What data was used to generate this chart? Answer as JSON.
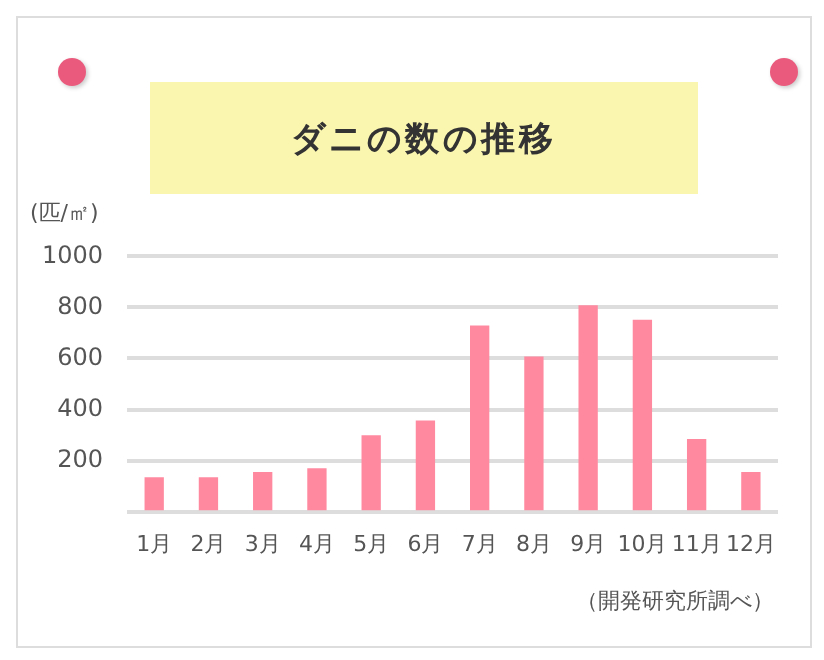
{
  "chart_data": {
    "type": "bar",
    "title": "ダニの数の推移",
    "ylabel": "(匹/㎡)",
    "categories": [
      "1月",
      "2月",
      "3月",
      "4月",
      "5月",
      "6月",
      "7月",
      "8月",
      "9月",
      "10月",
      "11月",
      "12月"
    ],
    "values": [
      132,
      132,
      153,
      167,
      297,
      354,
      727,
      605,
      806,
      749,
      282,
      153
    ],
    "color": "#ff8aa0",
    "ylim": [
      0,
      1000
    ],
    "yticks": [
      {
        "value": 0,
        "label": null
      },
      200,
      400,
      600,
      800,
      1000
    ],
    "grid": "y",
    "legend": false,
    "annotations": [
      "（開発研究所調べ）"
    ]
  }
}
